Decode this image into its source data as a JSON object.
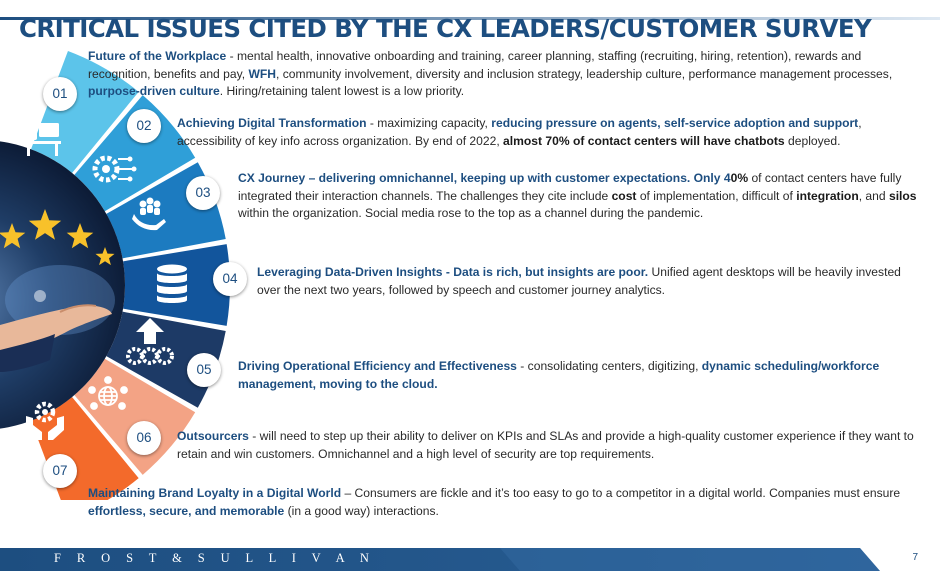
{
  "title": "CRITICAL ISSUES CITED BY THE CX LEADERS/CUSTOMER SURVEY",
  "badges": [
    "01",
    "02",
    "03",
    "04",
    "05",
    "06",
    "07"
  ],
  "items": [
    {
      "heading": "Future of the Workplace",
      "t1": " - mental health, innovative onboarding and training, career planning, staffing (recruiting, hiring, retention), rewards and recognition, benefits and pay, ",
      "k1": "WFH",
      "t2": ", community involvement, diversity and inclusion strategy, leadership culture, performance management processes, ",
      "k2": "purpose-driven culture",
      "t3": ".  Hiring/retaining talent lowest is a low priority."
    },
    {
      "heading": "Achieving Digital Transformation",
      "t1": " - maximizing capacity, ",
      "k1": "reducing pressure on agents, self-service adoption and support",
      "t2": ", accessibility of key info across organization. By end of 2022, ",
      "d1": "almost 70% of contact centers will have chatbots",
      "t3": " deployed."
    },
    {
      "heading": "CX Journey – delivering omnichannel, keeping up with customer expectations. Only 4",
      "d1": "0%",
      "t1": "  of contact centers have fully integrated their interaction channels. The challenges they cite include ",
      "d2": "cost",
      "t2": " of implementation, difficult of ",
      "d3": "integration",
      "t3": ", and ",
      "d4": "silos",
      "t4": " within the organization. Social media rose to the top as a channel during the pandemic."
    },
    {
      "heading": "Leveraging Data-Driven Insights - Data is rich, but insights are poor.",
      "t1": " Unified agent desktops will be heavily invested over the next two years, followed by speech and customer journey analytics."
    },
    {
      "heading": "Driving Operational Efficiency and Effectiveness",
      "t1": "  - consolidating centers, digitizing, ",
      "k1": "dynamic scheduling/workforce management, moving to the cloud."
    },
    {
      "heading": "Outsourcers",
      "t1": " - will need to step up their ability to deliver on KPIs and SLAs and provide a high-quality customer experience if they want to retain and win customers. Omnichannel and a high level of security are top requirements."
    },
    {
      "heading": "Maintaining Brand Loyalty in a Digital World",
      "t1": " – Consumers are fickle and it’s too easy to go to a competitor in a digital world. Companies must ensure ",
      "k1": "effortless, secure, and  memorable",
      "t2": " (in a good way) interactions."
    }
  ],
  "footer": {
    "brand": "F R O S T  &  S U L L I V A N",
    "page": "7"
  },
  "colors": {
    "primary": "#1d4e80",
    "segments": [
      "#5cc4ea",
      "#2f9fd8",
      "#1c7bc0",
      "#12559c",
      "#1d3a66",
      "#f3a385",
      "#f36a2b"
    ],
    "footer": "#1d4e80"
  },
  "icons": [
    "worker-at-computer-icon",
    "gear-network-icon",
    "hand-holding-people-icon",
    "database-icon",
    "upload-gears-icon",
    "globe-network-icon",
    "hands-gear-icon",
    "stars-hand-photo"
  ]
}
